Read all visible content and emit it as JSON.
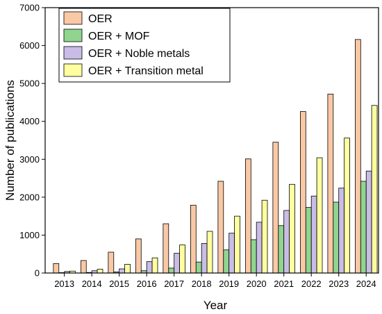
{
  "chart_data": {
    "type": "bar",
    "xlabel": "Year",
    "ylabel": "Number of publications",
    "ylim": [
      0,
      7000
    ],
    "yticks": [
      0,
      1000,
      2000,
      3000,
      4000,
      5000,
      6000,
      7000
    ],
    "grid": false,
    "legend_position": "top-left",
    "categories": [
      "2013",
      "2014",
      "2015",
      "2016",
      "2017",
      "2018",
      "2019",
      "2020",
      "2021",
      "2022",
      "2023",
      "2024"
    ],
    "series": [
      {
        "name": "OER",
        "color": "#F9C8A5",
        "values": [
          250,
          330,
          550,
          900,
          1300,
          1790,
          2420,
          3010,
          3450,
          4260,
          4720,
          6160
        ]
      },
      {
        "name": "OER + MOF",
        "color": "#90D490",
        "values": [
          10,
          15,
          30,
          60,
          130,
          290,
          610,
          880,
          1250,
          1730,
          1870,
          2420
        ]
      },
      {
        "name": "OER + Noble metals",
        "color": "#C9BCE6",
        "values": [
          40,
          60,
          110,
          300,
          520,
          780,
          1050,
          1340,
          1650,
          2030,
          2240,
          2690
        ]
      },
      {
        "name": "OER + Transition metal",
        "color": "#FFFFA0",
        "values": [
          50,
          100,
          230,
          400,
          740,
          1100,
          1500,
          1920,
          2340,
          3040,
          3560,
          4420
        ]
      }
    ]
  }
}
